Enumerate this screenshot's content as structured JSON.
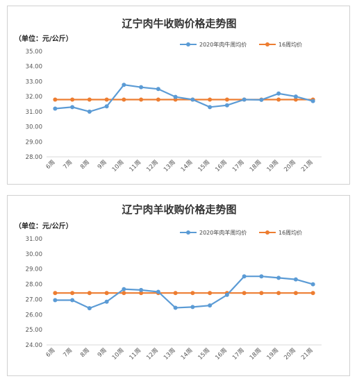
{
  "chart_data": [
    {
      "type": "line",
      "title": "辽宁肉牛收购价格走势图",
      "unit_label": "（单位：元/公斤）",
      "categories": [
        "6周",
        "7周",
        "8周",
        "9周",
        "10周",
        "11周",
        "12周",
        "13周",
        "14周",
        "15周",
        "16周",
        "17周",
        "18周",
        "19周",
        "20周",
        "21周"
      ],
      "yticks": [
        "35.00",
        "34.00",
        "33.00",
        "32.00",
        "31.00",
        "30.00",
        "29.00",
        "28.00"
      ],
      "ylim": [
        28,
        35
      ],
      "grid": false,
      "legend_position": "top-right",
      "series": [
        {
          "name": "2020年肉牛周均价",
          "color": "#5b9bd5",
          "values": [
            31.2,
            31.3,
            31.0,
            31.35,
            32.78,
            32.62,
            32.5,
            31.98,
            31.8,
            31.3,
            31.42,
            31.8,
            31.78,
            32.2,
            32.0,
            31.7
          ]
        },
        {
          "name": "16周均价",
          "color": "#ed7d31",
          "values": [
            31.8,
            31.8,
            31.8,
            31.8,
            31.8,
            31.8,
            31.8,
            31.8,
            31.8,
            31.8,
            31.8,
            31.8,
            31.8,
            31.8,
            31.8,
            31.8
          ]
        }
      ]
    },
    {
      "type": "line",
      "title": "辽宁肉羊收购价格走势图",
      "unit_label": "（单位：元/公斤）",
      "categories": [
        "6周",
        "7周",
        "8周",
        "9周",
        "10周",
        "11周",
        "12周",
        "13周",
        "14周",
        "15周",
        "16周",
        "17周",
        "18周",
        "19周",
        "20周",
        "21周"
      ],
      "yticks": [
        "31.00",
        "30.00",
        "29.00",
        "28.00",
        "27.00",
        "26.00",
        "25.00",
        "24.00"
      ],
      "ylim": [
        24,
        31
      ],
      "grid": false,
      "legend_position": "top-right",
      "series": [
        {
          "name": "2020年肉羊周均价",
          "color": "#5b9bd5",
          "values": [
            26.95,
            26.95,
            26.42,
            26.85,
            27.68,
            27.62,
            27.5,
            26.45,
            26.5,
            26.6,
            27.3,
            28.52,
            28.52,
            28.42,
            28.32,
            28.0
          ]
        },
        {
          "name": "16周均价",
          "color": "#ed7d31",
          "values": [
            27.42,
            27.42,
            27.42,
            27.42,
            27.42,
            27.42,
            27.42,
            27.42,
            27.42,
            27.42,
            27.42,
            27.42,
            27.42,
            27.42,
            27.42,
            27.42
          ]
        }
      ]
    }
  ]
}
